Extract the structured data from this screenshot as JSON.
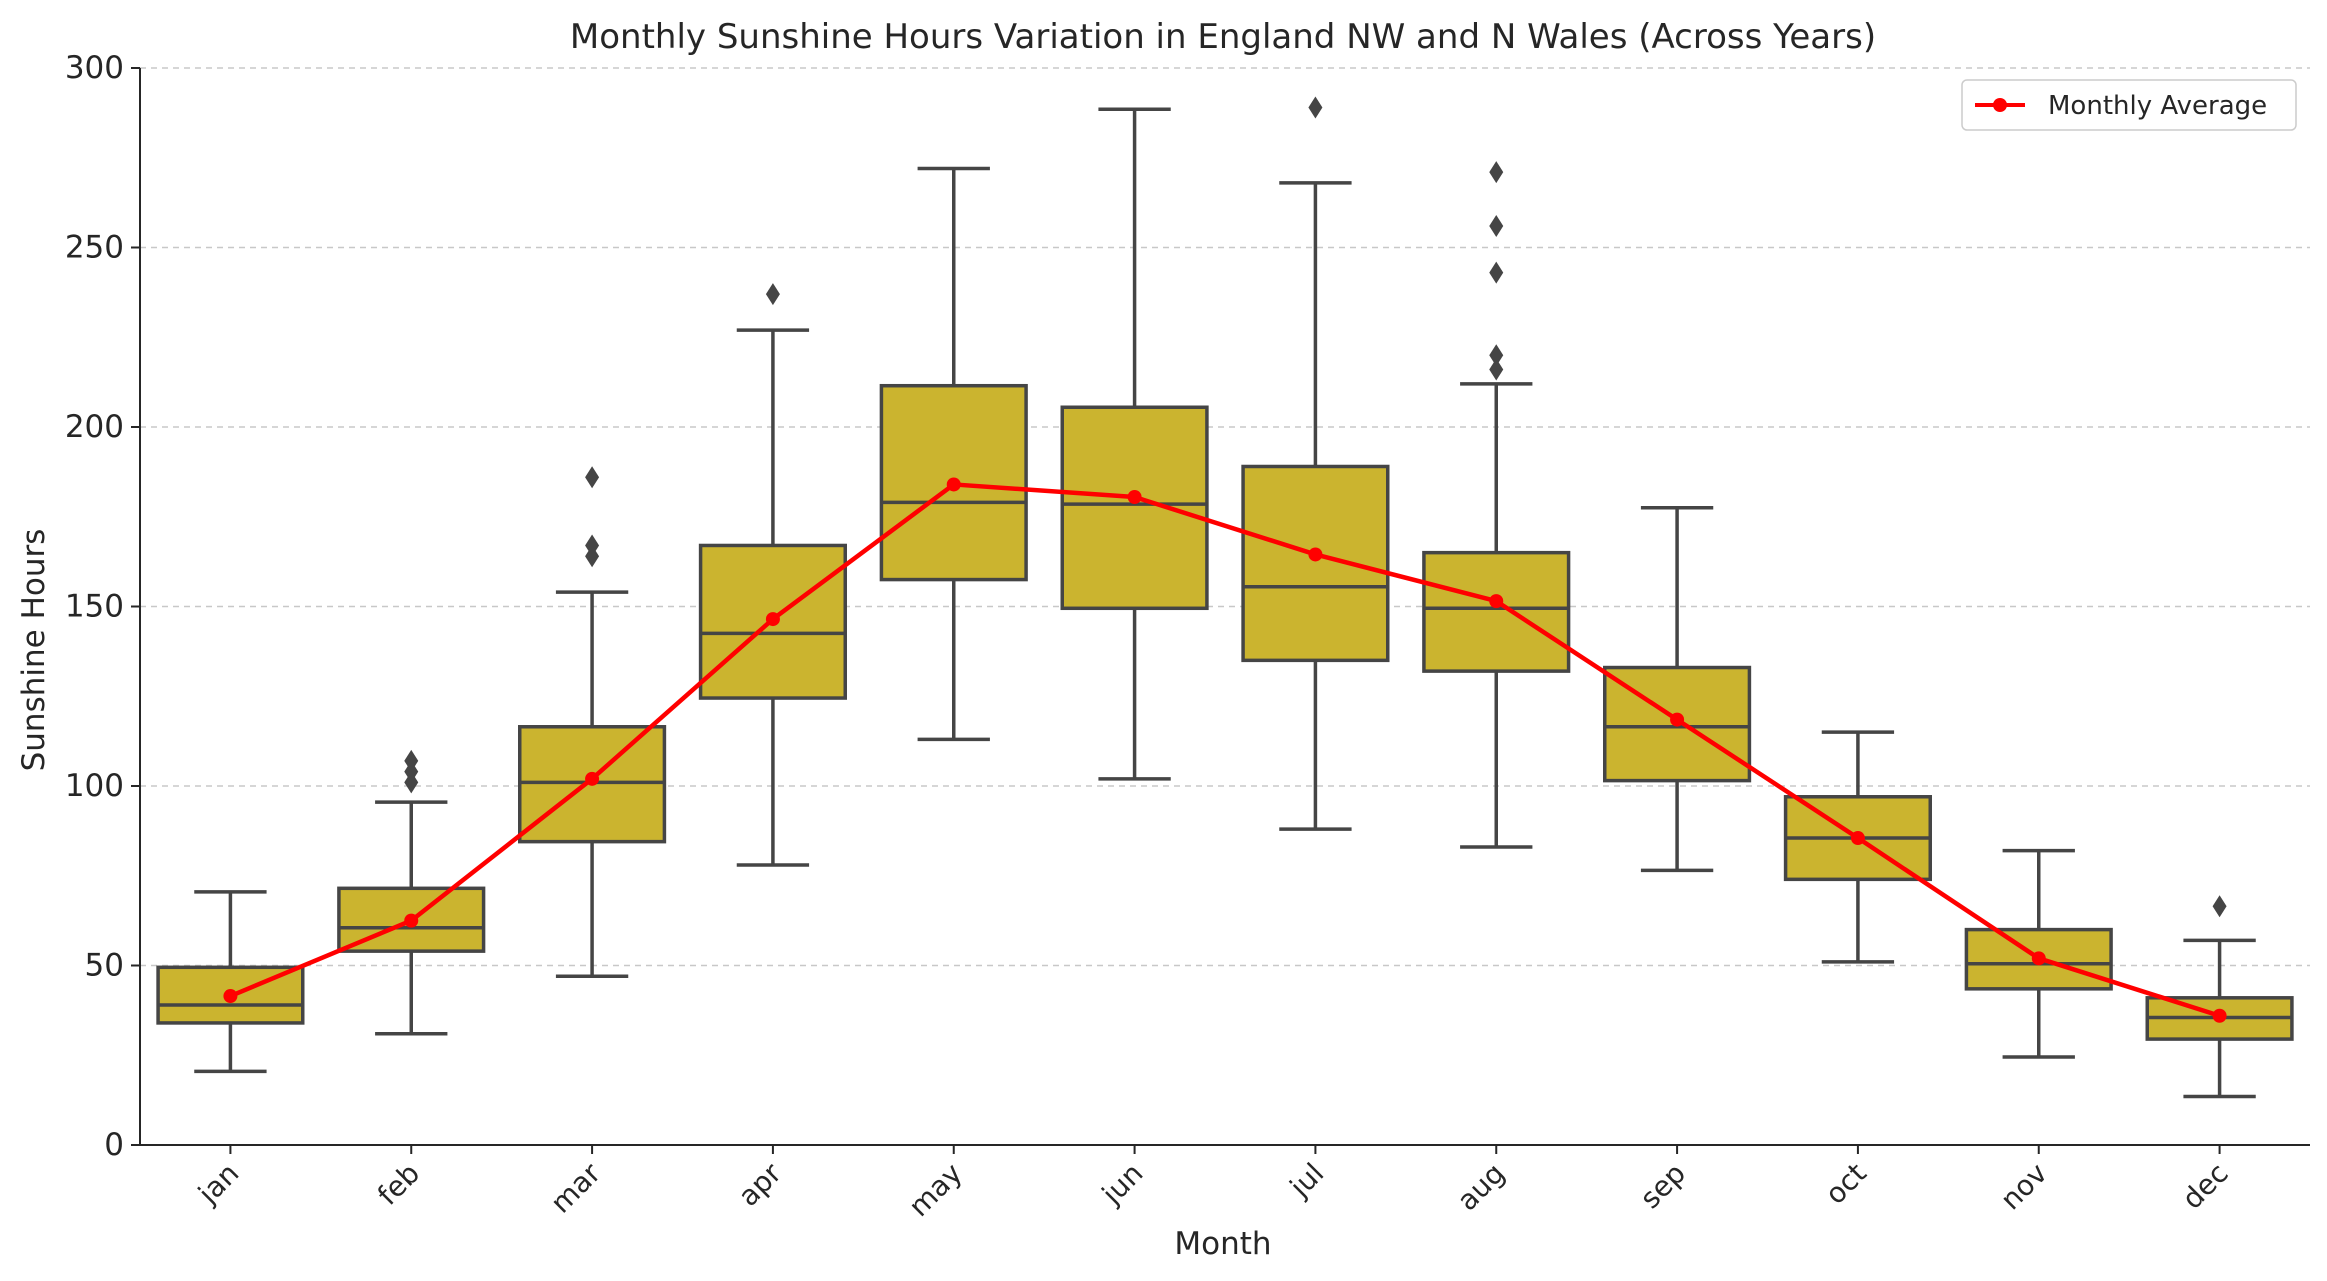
{
  "chart_data": {
    "type": "box",
    "title": "Monthly Sunshine Hours Variation in England NW and N Wales (Across Years)",
    "xlabel": "Month",
    "ylabel": "Sunshine Hours",
    "ylim": [
      0,
      300
    ],
    "yticks": [
      0,
      50,
      100,
      150,
      200,
      250,
      300
    ],
    "grid": "horizontal dashed",
    "legend": {
      "position": "top-right",
      "label": "Monthly Average"
    },
    "colors": {
      "box_fill": "#cbb42f",
      "box_edge": "#454545",
      "average_line": "#ff0000",
      "grid": "#c8c8c8"
    },
    "categories": [
      "jan",
      "feb",
      "mar",
      "apr",
      "may",
      "jun",
      "jul",
      "aug",
      "sep",
      "oct",
      "nov",
      "dec"
    ],
    "boxes": [
      {
        "month": "jan",
        "whisker_low": 20.5,
        "q1": 34,
        "median": 39,
        "q3": 49.5,
        "whisker_high": 70.5,
        "outliers": []
      },
      {
        "month": "feb",
        "whisker_low": 31,
        "q1": 54,
        "median": 60.5,
        "q3": 71.5,
        "whisker_high": 95.5,
        "outliers": [
          101,
          104,
          107
        ]
      },
      {
        "month": "mar",
        "whisker_low": 47,
        "q1": 84.5,
        "median": 101,
        "q3": 116.5,
        "whisker_high": 154,
        "outliers": [
          164,
          167,
          186
        ]
      },
      {
        "month": "apr",
        "whisker_low": 78,
        "q1": 124.5,
        "median": 142.5,
        "q3": 167,
        "whisker_high": 227,
        "outliers": [
          237
        ]
      },
      {
        "month": "may",
        "whisker_low": 113,
        "q1": 157.5,
        "median": 179,
        "q3": 211.5,
        "whisker_high": 272,
        "outliers": []
      },
      {
        "month": "jun",
        "whisker_low": 102,
        "q1": 149.5,
        "median": 178.5,
        "q3": 205.5,
        "whisker_high": 288.5,
        "outliers": []
      },
      {
        "month": "jul",
        "whisker_low": 88,
        "q1": 135,
        "median": 155.5,
        "q3": 189,
        "whisker_high": 268,
        "outliers": [
          289
        ]
      },
      {
        "month": "aug",
        "whisker_low": 83,
        "q1": 132,
        "median": 149.5,
        "q3": 165,
        "whisker_high": 212,
        "outliers": [
          216,
          220,
          243,
          256,
          271
        ]
      },
      {
        "month": "sep",
        "whisker_low": 76.5,
        "q1": 101.5,
        "median": 116.5,
        "q3": 133,
        "whisker_high": 177.5,
        "outliers": []
      },
      {
        "month": "oct",
        "whisker_low": 51,
        "q1": 74,
        "median": 85.5,
        "q3": 97,
        "whisker_high": 115,
        "outliers": []
      },
      {
        "month": "nov",
        "whisker_low": 24.5,
        "q1": 43.5,
        "median": 50.5,
        "q3": 60,
        "whisker_high": 82,
        "outliers": []
      },
      {
        "month": "dec",
        "whisker_low": 13.5,
        "q1": 29.5,
        "median": 35.5,
        "q3": 41,
        "whisker_high": 57,
        "outliers": [
          66.5
        ]
      }
    ],
    "series": [
      {
        "name": "Monthly Average",
        "values": [
          41.5,
          62.5,
          102,
          146.5,
          184,
          180.5,
          164.5,
          151.5,
          118.5,
          85.5,
          52,
          36
        ]
      }
    ]
  }
}
